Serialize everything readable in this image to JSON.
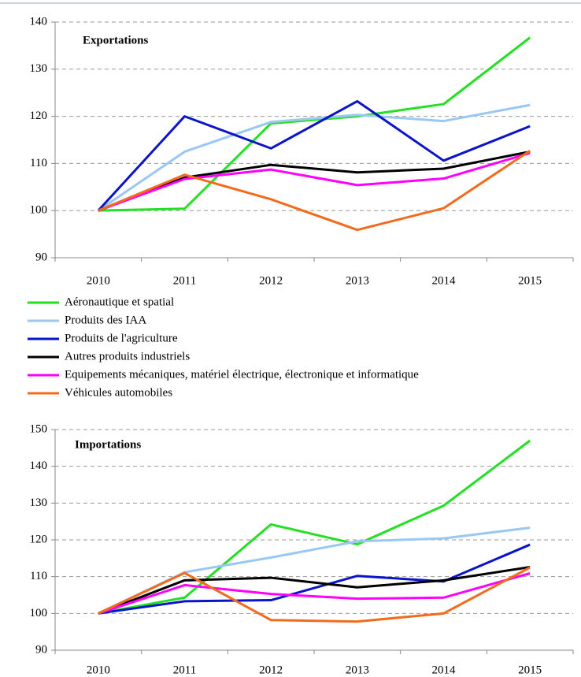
{
  "chart_data": [
    {
      "type": "line",
      "title": "Exportations",
      "categories": [
        "2010",
        "2011",
        "2012",
        "2013",
        "2014",
        "2015"
      ],
      "ylim": [
        90,
        140
      ],
      "yticks": [
        90,
        100,
        110,
        120,
        130,
        140
      ],
      "grid": true,
      "series": [
        {
          "name": "Aéronautique et spatial",
          "color": "#22e022",
          "values": [
            100,
            100.4,
            118.5,
            120,
            122.6,
            136.7
          ]
        },
        {
          "name": "Produits des IAA",
          "color": "#99c8f5",
          "values": [
            100,
            112.5,
            118.8,
            120.3,
            119,
            122.4
          ]
        },
        {
          "name": "Produits de l'agriculture",
          "color": "#0a14c8",
          "values": [
            100,
            120,
            113.2,
            123.2,
            110.6,
            117.9
          ]
        },
        {
          "name": "Autres produits industriels",
          "color": "#000000",
          "values": [
            100,
            107,
            109.7,
            108.1,
            108.9,
            112.5
          ]
        },
        {
          "name": "Equipements mécaniques, matériel électrique, électronique et informatique",
          "color": "#ff00ff",
          "values": [
            100,
            106.7,
            108.7,
            105.4,
            106.8,
            112.2
          ]
        },
        {
          "name": "Véhicules automobiles",
          "color": "#f26b1d",
          "values": [
            100,
            107.6,
            102.4,
            95.9,
            100.5,
            112.7
          ]
        }
      ]
    },
    {
      "type": "line",
      "title": "Importations",
      "categories": [
        "2010",
        "2011",
        "2012",
        "2013",
        "2014",
        "2015"
      ],
      "ylim": [
        90,
        150
      ],
      "yticks": [
        90,
        100,
        110,
        120,
        130,
        140,
        150
      ],
      "grid": true,
      "series": [
        {
          "name": "Aéronautique et spatial",
          "color": "#22e022",
          "values": [
            100,
            104.3,
            124.2,
            118.8,
            129.3,
            147
          ]
        },
        {
          "name": "Produits des IAA",
          "color": "#99c8f5",
          "values": [
            100,
            111.2,
            115.2,
            119.6,
            120.4,
            123.3
          ]
        },
        {
          "name": "Produits de l'agriculture",
          "color": "#0a14c8",
          "values": [
            100,
            103.3,
            103.6,
            110.2,
            108.7,
            118.7
          ]
        },
        {
          "name": "Autres produits industriels",
          "color": "#000000",
          "values": [
            100,
            109,
            109.7,
            107.1,
            109,
            112.6
          ]
        },
        {
          "name": "Equipements mécaniques, matériel électrique, électronique et informatique",
          "color": "#ff00ff",
          "values": [
            100,
            107.7,
            105.3,
            104,
            104.3,
            110.9
          ]
        },
        {
          "name": "Véhicules automobiles",
          "color": "#f26b1d",
          "values": [
            100,
            111,
            98.2,
            97.8,
            100,
            112.5
          ]
        }
      ]
    }
  ]
}
